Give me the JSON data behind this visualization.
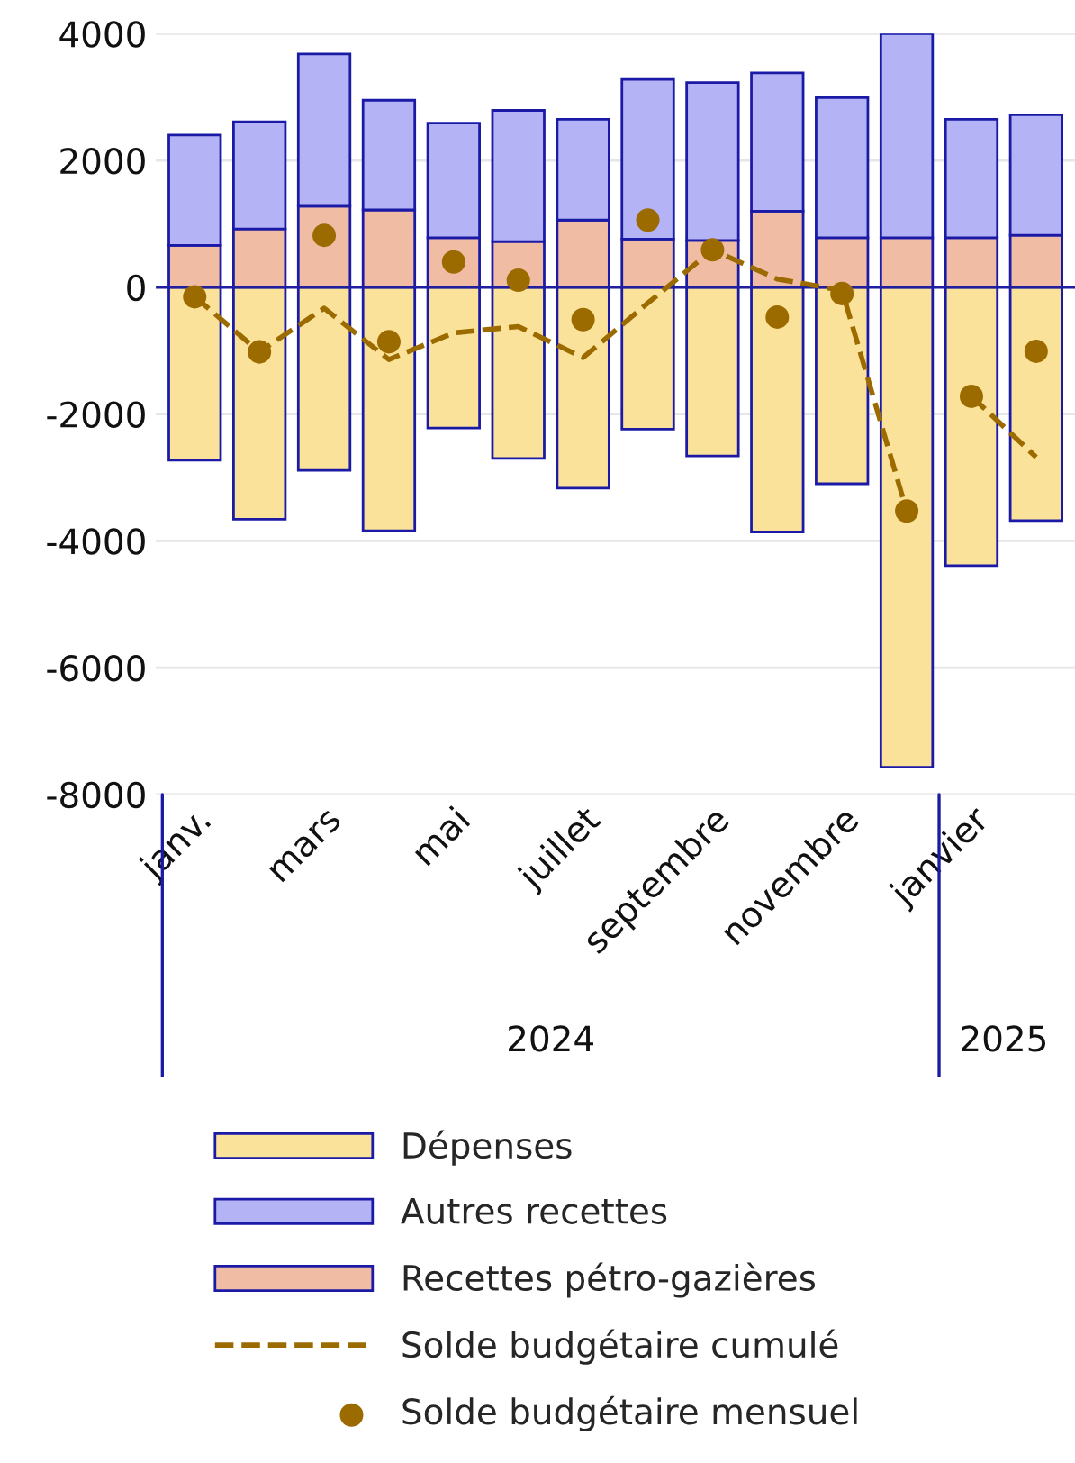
{
  "chart_data": {
    "type": "bar",
    "stacked": true,
    "categories": [
      "janv.",
      null,
      "mars",
      null,
      "mai",
      null,
      "juillet",
      null,
      "septembre",
      null,
      "novembre",
      null,
      "janvier",
      null
    ],
    "series": [
      {
        "name": "Dépenses",
        "color": "#fbe29a",
        "values": [
          -2730,
          -3660,
          -2890,
          -3840,
          -2220,
          -2700,
          -3170,
          -2240,
          -2660,
          -3860,
          -3100,
          -7570,
          -4390,
          -3680
        ]
      },
      {
        "name": "Autres recettes",
        "color": "#b3b3f5",
        "values": [
          1740,
          1690,
          2400,
          1730,
          1810,
          2070,
          1590,
          2520,
          2490,
          2180,
          2210,
          3220,
          1870,
          1900
        ]
      },
      {
        "name": "Recettes pétro-gazières",
        "color": "#f0bca4",
        "values": [
          660,
          920,
          1280,
          1220,
          780,
          720,
          1060,
          760,
          740,
          1200,
          780,
          780,
          780,
          820
        ]
      },
      {
        "name": "Solde budgétaire cumulé",
        "type": "line",
        "color": "#9c6b00",
        "line_style": "dashed",
        "values": [
          -150,
          -1020,
          -330,
          -1140,
          -720,
          -620,
          -1110,
          -250,
          590,
          130,
          -50,
          -3530,
          null,
          null
        ]
      },
      {
        "type": "line",
        "color": "#9c6b00",
        "line_style": "dashed",
        "values": [
          null,
          null,
          null,
          null,
          null,
          null,
          null,
          null,
          null,
          null,
          null,
          null,
          -1720,
          -2680
        ]
      },
      {
        "name": "Solde budgétaire mensuel",
        "type": "scatter",
        "color": "#9c6b00",
        "marker": "circle",
        "values": [
          -150,
          -1020,
          820,
          -860,
          400,
          110,
          -510,
          1060,
          590,
          -470,
          -100,
          -3530,
          -1720,
          -1010
        ]
      }
    ],
    "ylim": [
      -8000,
      4000
    ],
    "yticks": [
      -8000,
      -6000,
      -4000,
      -2000,
      0,
      2000,
      4000
    ],
    "grid": "y",
    "legend": "bottom",
    "ref_lines": [
      {
        "axis": "y",
        "value": 0,
        "color": "#1f1fa0"
      }
    ],
    "annotations": [
      "2024",
      "2025"
    ]
  }
}
